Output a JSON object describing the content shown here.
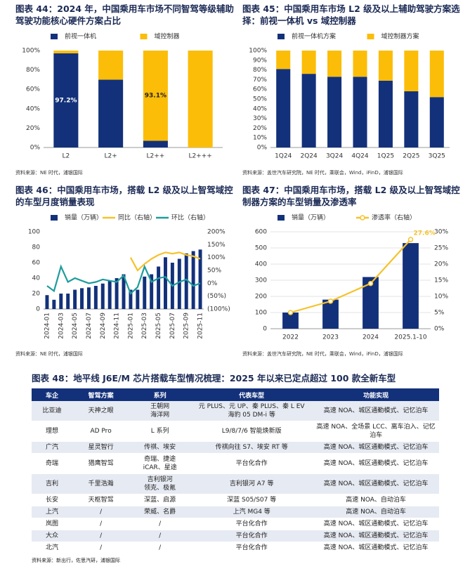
{
  "chart_data": [
    {
      "type": "bar",
      "stacked": true,
      "title": "图表 44：2024 年，中国乘用车市场不同智驾等级辅助驾驶功能核心硬件方案占比",
      "categories": [
        "L2",
        "L2+",
        "L2++",
        "L2+++"
      ],
      "series": [
        {
          "name": "前视一体机",
          "color": "#13317a",
          "values": [
            97.2,
            70,
            6.9,
            0
          ],
          "value_labels": [
            "97.2%",
            null,
            null,
            null
          ]
        },
        {
          "name": "域控制器",
          "color": "#fbbd08",
          "values": [
            2.8,
            30,
            93.1,
            100
          ],
          "value_labels": [
            null,
            null,
            "93.1%",
            null
          ]
        }
      ],
      "ylim": [
        0,
        100
      ],
      "yticks": [
        {
          "value": 0,
          "label": "0%"
        },
        {
          "value": 20,
          "label": "20%"
        },
        {
          "value": 40,
          "label": "40%"
        },
        {
          "value": 60,
          "label": "60%"
        },
        {
          "value": 80,
          "label": "80%"
        },
        {
          "value": 100,
          "label": "100%"
        }
      ],
      "grid": false,
      "legend": "top",
      "source": "资料来源：NE 时代，浦银国际"
    },
    {
      "type": "bar",
      "stacked": true,
      "title": "图表 45：中国乘用车市场 L2 级及以上辅助驾驶方案选择：前视一体机 vs 域控制器",
      "categories": [
        "1Q24",
        "2Q24",
        "3Q24",
        "4Q24",
        "1Q25",
        "2Q25",
        "3Q25"
      ],
      "series": [
        {
          "name": "前视一体机方案",
          "color": "#13317a",
          "values": [
            81,
            76,
            73,
            73,
            69,
            58,
            52
          ]
        },
        {
          "name": "域控制器方案",
          "color": "#fbbd08",
          "values": [
            19,
            24,
            27,
            27,
            31,
            42,
            48
          ]
        }
      ],
      "ylim": [
        0,
        100
      ],
      "yticks": [
        {
          "value": 0,
          "label": "0%"
        },
        {
          "value": 10,
          "label": "10%"
        },
        {
          "value": 20,
          "label": "20%"
        },
        {
          "value": 30,
          "label": "30%"
        },
        {
          "value": 40,
          "label": "40%"
        },
        {
          "value": 50,
          "label": "50%"
        },
        {
          "value": 60,
          "label": "60%"
        },
        {
          "value": 70,
          "label": "70%"
        },
        {
          "value": 80,
          "label": "80%"
        },
        {
          "value": 90,
          "label": "90%"
        },
        {
          "value": 100,
          "label": "100%"
        }
      ],
      "grid": false,
      "legend": "top",
      "source": "资料来源：盖世汽车研究院，NE 时代，乘联会，Wind，iFinD，浦银国际"
    },
    {
      "type": "combo",
      "rotate_x_labels": true,
      "title": "图表 46：中国乘用车市场，搭载 L2 级及以上智驾域控的车型月度销量表现",
      "categories": [
        "2024-01",
        null,
        "2024-03",
        null,
        "2024-05",
        null,
        "2024-07",
        null,
        "2024-09",
        null,
        "2024-11",
        null,
        "2025-01",
        null,
        "2025-03",
        null,
        "2025-05",
        null,
        "2025-07",
        null,
        "2025-09",
        null,
        "2025-11"
      ],
      "series": [
        {
          "name": "销量（万辆）",
          "type": "bar",
          "color": "#13317a",
          "values": [
            18,
            12,
            20,
            20,
            25,
            27,
            28,
            30,
            33,
            37,
            40,
            45,
            25,
            25,
            42,
            45,
            55,
            67,
            60,
            65,
            72,
            75,
            77
          ]
        },
        {
          "name": "同比（右轴）",
          "type": "line",
          "axis": "y2",
          "color": "#f6c22a",
          "values": [
            null,
            null,
            null,
            null,
            null,
            null,
            null,
            null,
            null,
            null,
            null,
            null,
            100,
            50,
            75,
            95,
            110,
            120,
            115,
            120,
            110,
            105,
            95
          ]
        },
        {
          "name": "环比（右轴）",
          "type": "line",
          "axis": "y2",
          "color": "#1f9c9c",
          "values": [
            -10,
            -30,
            65,
            5,
            20,
            10,
            0,
            5,
            15,
            10,
            5,
            30,
            -40,
            -15,
            65,
            5,
            20,
            25,
            -10,
            5,
            15,
            -10,
            0
          ]
        }
      ],
      "ylim": [
        0,
        100
      ],
      "yticks": [
        0,
        20,
        40,
        60,
        80,
        100
      ],
      "y2lim": [
        -100,
        200
      ],
      "y2ticks": [
        {
          "value": 200,
          "label": "200%"
        },
        {
          "value": 150,
          "label": "150%"
        },
        {
          "value": 100,
          "label": "100%"
        },
        {
          "value": 50,
          "label": "50%"
        },
        {
          "value": 0,
          "label": "0%"
        },
        {
          "value": -50,
          "label": "(50%)"
        },
        {
          "value": -100,
          "label": "(100%)"
        }
      ],
      "grid": false,
      "legend": "top",
      "source": "资料来源：NE 时代，浦银国际"
    },
    {
      "type": "combo",
      "title": "图表 47：中国乘用车市场，搭载 L2 级及以上智驾域控制器方案的车型销量及渗透率",
      "categories": [
        "2022",
        "2023",
        "2024",
        "2025.1-10"
      ],
      "series": [
        {
          "name": "销量（万辆）",
          "type": "bar",
          "color": "#13317a",
          "values": [
            100,
            180,
            320,
            530
          ]
        },
        {
          "name": "渗透率（右轴）",
          "type": "line",
          "axis": "y2",
          "color": "#f6c22a",
          "marker": "circle",
          "values": [
            5,
            8.5,
            14,
            27.6
          ],
          "value_labels": [
            null,
            null,
            null,
            "27.6%"
          ]
        }
      ],
      "ylim": [
        0,
        600
      ],
      "yticks": [
        0,
        100,
        200,
        300,
        400,
        500,
        600
      ],
      "y2lim": [
        0,
        30
      ],
      "y2ticks": [
        {
          "value": 0,
          "label": "0%"
        },
        {
          "value": 5,
          "label": "5%"
        },
        {
          "value": 10,
          "label": "10%"
        },
        {
          "value": 15,
          "label": "15%"
        },
        {
          "value": 20,
          "label": "20%"
        },
        {
          "value": 25,
          "label": "25%"
        },
        {
          "value": 30,
          "label": "30%"
        }
      ],
      "grid": true,
      "legend": "top",
      "source": "资料来源：盖世汽车研究院，NE 时代，乘联会，Wind，iFinD，浦银国际"
    }
  ],
  "table": {
    "title": "图表 48：地平线 J6E/M 芯片搭载车型情况梳理：2025 年以来已定点超过 100 款全新车型",
    "header": [
      "车企",
      "智驾方案",
      "系列",
      "代表车型",
      "功能实现"
    ],
    "rows": [
      [
        "比亚迪",
        "天神之眼",
        "王朝网\n海洋网",
        "元 PLUS、元 UP、秦 PLUS、秦 L EV\n海豹 05 DM-i 等",
        "高速 NOA、城区通勤模式、记忆泊车"
      ],
      [
        "理想",
        "AD Pro",
        "L 系列",
        "L9/8/7/6 智能焕新版",
        "高速 NOA、全场景 LCC、离车泊入、记忆泊车"
      ],
      [
        "广汽",
        "星灵智行",
        "传祺、埃安",
        "传祺向往 S7、埃安 RT 等",
        "高速 NOA、城区通勤模式、记忆泊车"
      ],
      [
        "奇瑞",
        "猎鹰智驾",
        "奇瑞、捷途\niCAR、星途",
        "平台化合作",
        "高速 NOA、城区通勤模式、记忆泊车"
      ],
      [
        "吉利",
        "千里浩瀚",
        "吉利银河\n领克、极氪",
        "吉利银河 A7 等",
        "高速 NOA、城区通勤模式、记忆泊车"
      ],
      [
        "长安",
        "天枢智驾",
        "深蓝、启源",
        "深蓝 S05/S07 等",
        "高速 NOA、自动泊车"
      ],
      [
        "上汽",
        "/",
        "荣威、名爵",
        "上汽 MG4 等",
        "高速 NOA、自动泊车"
      ],
      [
        "岚图",
        "/",
        "/",
        "平台化合作",
        "高速 NOA、城区通勤模式、记忆泊车"
      ],
      [
        "大众",
        "/",
        "/",
        "平台化合作",
        "高速 NOA、城区通勤模式、记忆泊车"
      ],
      [
        "北汽",
        "/",
        "/",
        "平台化合作",
        "高速 NOA、城区通勤模式、记忆泊车"
      ]
    ],
    "source": "资料来源：新出行，佐思汽研，浦银国际"
  }
}
